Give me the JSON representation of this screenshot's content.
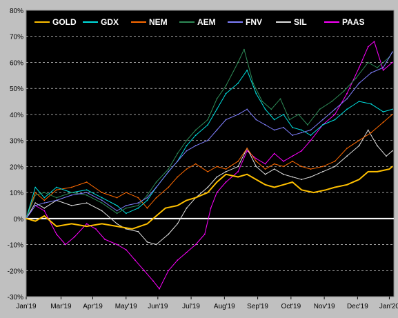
{
  "chart_data": {
    "type": "line",
    "title": "",
    "xlabel": "",
    "ylabel": "",
    "ylim": [
      -0.3,
      0.8
    ],
    "y_ticks": [
      "80%",
      "70%",
      "60%",
      "50%",
      "40%",
      "30%",
      "20%",
      "10%",
      "0%",
      "-10%",
      "-20%",
      "-30%"
    ],
    "x_ticks": [
      "Jan'19",
      "Mar'19",
      "Apr'19",
      "May'19",
      "Jun'19",
      "Jul'19",
      "Aug'19",
      "Sep'19",
      "Oct'19",
      "Nov'19",
      "Dec'19",
      "Jan'20"
    ],
    "x_positions": [
      0,
      1.15,
      2.2,
      3.3,
      4.35,
      5.45,
      6.55,
      7.65,
      8.75,
      9.85,
      10.95,
      12.0
    ],
    "background": "#000000",
    "grid": "dashed horizontal, white",
    "zero_line": true,
    "legend_position": "top",
    "series": [
      {
        "name": "GOLD",
        "color": "#ffc000",
        "points": [
          [
            0,
            0
          ],
          [
            0.3,
            -0.01
          ],
          [
            0.6,
            0.01
          ],
          [
            1.0,
            -0.03
          ],
          [
            1.5,
            -0.02
          ],
          [
            2.0,
            -0.03
          ],
          [
            2.5,
            -0.02
          ],
          [
            3.0,
            -0.03
          ],
          [
            3.5,
            -0.04
          ],
          [
            4.0,
            -0.02
          ],
          [
            4.3,
            0.01
          ],
          [
            4.6,
            0.04
          ],
          [
            5.0,
            0.05
          ],
          [
            5.3,
            0.07
          ],
          [
            5.6,
            0.08
          ],
          [
            6.0,
            0.1
          ],
          [
            6.3,
            0.14
          ],
          [
            6.6,
            0.17
          ],
          [
            7.0,
            0.16
          ],
          [
            7.3,
            0.17
          ],
          [
            7.6,
            0.15
          ],
          [
            7.9,
            0.13
          ],
          [
            8.2,
            0.12
          ],
          [
            8.5,
            0.13
          ],
          [
            8.8,
            0.14
          ],
          [
            9.1,
            0.11
          ],
          [
            9.5,
            0.1
          ],
          [
            9.9,
            0.11
          ],
          [
            10.2,
            0.12
          ],
          [
            10.6,
            0.13
          ],
          [
            11.0,
            0.15
          ],
          [
            11.3,
            0.18
          ],
          [
            11.6,
            0.18
          ],
          [
            12.0,
            0.19
          ],
          [
            12.1,
            0.2
          ]
        ]
      },
      {
        "name": "GDX",
        "color": "#00e0e0",
        "points": [
          [
            0,
            0
          ],
          [
            0.3,
            0.12
          ],
          [
            0.6,
            0.08
          ],
          [
            1.0,
            0.12
          ],
          [
            1.5,
            0.1
          ],
          [
            2.0,
            0.11
          ],
          [
            2.5,
            0.08
          ],
          [
            3.0,
            0.05
          ],
          [
            3.3,
            0.02
          ],
          [
            3.7,
            0.04
          ],
          [
            4.0,
            0.07
          ],
          [
            4.3,
            0.12
          ],
          [
            4.7,
            0.18
          ],
          [
            5.0,
            0.22
          ],
          [
            5.3,
            0.28
          ],
          [
            5.6,
            0.32
          ],
          [
            6.0,
            0.36
          ],
          [
            6.3,
            0.42
          ],
          [
            6.6,
            0.48
          ],
          [
            7.0,
            0.52
          ],
          [
            7.3,
            0.57
          ],
          [
            7.6,
            0.48
          ],
          [
            7.9,
            0.42
          ],
          [
            8.2,
            0.38
          ],
          [
            8.5,
            0.4
          ],
          [
            8.8,
            0.35
          ],
          [
            9.1,
            0.34
          ],
          [
            9.4,
            0.32
          ],
          [
            9.8,
            0.36
          ],
          [
            10.2,
            0.38
          ],
          [
            10.6,
            0.42
          ],
          [
            11.0,
            0.45
          ],
          [
            11.4,
            0.44
          ],
          [
            11.8,
            0.41
          ],
          [
            12.1,
            0.42
          ]
        ]
      },
      {
        "name": "NEM",
        "color": "#ff6a00",
        "points": [
          [
            0,
            0
          ],
          [
            0.3,
            0.1
          ],
          [
            0.6,
            0.07
          ],
          [
            1.0,
            0.11
          ],
          [
            1.5,
            0.12
          ],
          [
            2.0,
            0.14
          ],
          [
            2.5,
            0.1
          ],
          [
            3.0,
            0.08
          ],
          [
            3.3,
            0.1
          ],
          [
            3.7,
            0.08
          ],
          [
            4.0,
            0.04
          ],
          [
            4.3,
            0.08
          ],
          [
            4.7,
            0.12
          ],
          [
            5.0,
            0.16
          ],
          [
            5.3,
            0.19
          ],
          [
            5.6,
            0.21
          ],
          [
            6.0,
            0.18
          ],
          [
            6.3,
            0.2
          ],
          [
            6.6,
            0.19
          ],
          [
            7.0,
            0.22
          ],
          [
            7.3,
            0.27
          ],
          [
            7.6,
            0.22
          ],
          [
            7.9,
            0.19
          ],
          [
            8.2,
            0.21
          ],
          [
            8.5,
            0.2
          ],
          [
            8.8,
            0.22
          ],
          [
            9.1,
            0.2
          ],
          [
            9.4,
            0.19
          ],
          [
            9.8,
            0.2
          ],
          [
            10.2,
            0.22
          ],
          [
            10.6,
            0.27
          ],
          [
            11.0,
            0.3
          ],
          [
            11.4,
            0.33
          ],
          [
            11.8,
            0.37
          ],
          [
            12.1,
            0.4
          ]
        ]
      },
      {
        "name": "AEM",
        "color": "#2e8b57",
        "points": [
          [
            0,
            0
          ],
          [
            0.3,
            0.09
          ],
          [
            0.6,
            0.1
          ],
          [
            1.0,
            0.08
          ],
          [
            1.5,
            0.1
          ],
          [
            2.0,
            0.09
          ],
          [
            2.5,
            0.06
          ],
          [
            3.0,
            0.02
          ],
          [
            3.3,
            0.04
          ],
          [
            3.7,
            0.05
          ],
          [
            4.0,
            0.09
          ],
          [
            4.3,
            0.14
          ],
          [
            4.7,
            0.19
          ],
          [
            5.0,
            0.25
          ],
          [
            5.3,
            0.3
          ],
          [
            5.6,
            0.34
          ],
          [
            6.0,
            0.38
          ],
          [
            6.3,
            0.46
          ],
          [
            6.6,
            0.51
          ],
          [
            7.0,
            0.6
          ],
          [
            7.2,
            0.65
          ],
          [
            7.5,
            0.52
          ],
          [
            7.8,
            0.45
          ],
          [
            8.1,
            0.42
          ],
          [
            8.4,
            0.46
          ],
          [
            8.7,
            0.38
          ],
          [
            9.0,
            0.4
          ],
          [
            9.3,
            0.36
          ],
          [
            9.7,
            0.42
          ],
          [
            10.1,
            0.45
          ],
          [
            10.5,
            0.49
          ],
          [
            10.9,
            0.54
          ],
          [
            11.3,
            0.6
          ],
          [
            11.6,
            0.58
          ],
          [
            12.0,
            0.62
          ],
          [
            12.1,
            0.64
          ]
        ]
      },
      {
        "name": "FNV",
        "color": "#8080ff",
        "points": [
          [
            0,
            0
          ],
          [
            0.3,
            0.05
          ],
          [
            0.6,
            0.06
          ],
          [
            1.0,
            0.07
          ],
          [
            1.5,
            0.09
          ],
          [
            2.0,
            0.1
          ],
          [
            2.5,
            0.07
          ],
          [
            3.0,
            0.03
          ],
          [
            3.3,
            0.05
          ],
          [
            3.7,
            0.06
          ],
          [
            4.0,
            0.08
          ],
          [
            4.3,
            0.12
          ],
          [
            4.7,
            0.18
          ],
          [
            5.0,
            0.22
          ],
          [
            5.3,
            0.26
          ],
          [
            5.6,
            0.28
          ],
          [
            6.0,
            0.3
          ],
          [
            6.3,
            0.34
          ],
          [
            6.6,
            0.38
          ],
          [
            7.0,
            0.4
          ],
          [
            7.3,
            0.42
          ],
          [
            7.6,
            0.38
          ],
          [
            7.9,
            0.36
          ],
          [
            8.2,
            0.34
          ],
          [
            8.5,
            0.35
          ],
          [
            8.8,
            0.32
          ],
          [
            9.1,
            0.33
          ],
          [
            9.4,
            0.34
          ],
          [
            9.8,
            0.38
          ],
          [
            10.2,
            0.42
          ],
          [
            10.6,
            0.46
          ],
          [
            11.0,
            0.52
          ],
          [
            11.4,
            0.56
          ],
          [
            11.8,
            0.58
          ],
          [
            12.1,
            0.64
          ]
        ]
      },
      {
        "name": "SIL",
        "color": "#e0e0e0",
        "points": [
          [
            0,
            0
          ],
          [
            0.3,
            0.06
          ],
          [
            0.6,
            0.04
          ],
          [
            1.0,
            0.07
          ],
          [
            1.5,
            0.05
          ],
          [
            2.0,
            0.06
          ],
          [
            2.5,
            0.03
          ],
          [
            3.0,
            -0.02
          ],
          [
            3.3,
            -0.04
          ],
          [
            3.7,
            -0.05
          ],
          [
            4.0,
            -0.09
          ],
          [
            4.3,
            -0.1
          ],
          [
            4.7,
            -0.06
          ],
          [
            5.0,
            -0.02
          ],
          [
            5.3,
            0.04
          ],
          [
            5.6,
            0.08
          ],
          [
            6.0,
            0.12
          ],
          [
            6.3,
            0.16
          ],
          [
            6.6,
            0.18
          ],
          [
            7.0,
            0.2
          ],
          [
            7.3,
            0.27
          ],
          [
            7.6,
            0.2
          ],
          [
            7.9,
            0.17
          ],
          [
            8.2,
            0.19
          ],
          [
            8.5,
            0.17
          ],
          [
            8.8,
            0.16
          ],
          [
            9.1,
            0.15
          ],
          [
            9.4,
            0.16
          ],
          [
            9.8,
            0.18
          ],
          [
            10.2,
            0.2
          ],
          [
            10.6,
            0.24
          ],
          [
            11.0,
            0.28
          ],
          [
            11.3,
            0.34
          ],
          [
            11.6,
            0.28
          ],
          [
            11.9,
            0.24
          ],
          [
            12.1,
            0.26
          ]
        ]
      },
      {
        "name": "PAAS",
        "color": "#ff00ff",
        "points": [
          [
            0,
            0
          ],
          [
            0.3,
            0.05
          ],
          [
            0.6,
            0.03
          ],
          [
            1.0,
            -0.06
          ],
          [
            1.3,
            -0.1
          ],
          [
            1.6,
            -0.07
          ],
          [
            2.0,
            -0.02
          ],
          [
            2.3,
            -0.04
          ],
          [
            2.6,
            -0.08
          ],
          [
            3.0,
            -0.1
          ],
          [
            3.3,
            -0.12
          ],
          [
            3.6,
            -0.16
          ],
          [
            3.9,
            -0.2
          ],
          [
            4.2,
            -0.24
          ],
          [
            4.4,
            -0.27
          ],
          [
            4.7,
            -0.2
          ],
          [
            5.0,
            -0.16
          ],
          [
            5.3,
            -0.13
          ],
          [
            5.6,
            -0.1
          ],
          [
            5.9,
            -0.06
          ],
          [
            6.1,
            0.04
          ],
          [
            6.3,
            0.1
          ],
          [
            6.6,
            0.14
          ],
          [
            7.0,
            0.18
          ],
          [
            7.3,
            0.26
          ],
          [
            7.6,
            0.23
          ],
          [
            7.9,
            0.21
          ],
          [
            8.2,
            0.25
          ],
          [
            8.5,
            0.22
          ],
          [
            8.8,
            0.24
          ],
          [
            9.1,
            0.26
          ],
          [
            9.4,
            0.3
          ],
          [
            9.8,
            0.36
          ],
          [
            10.2,
            0.4
          ],
          [
            10.6,
            0.48
          ],
          [
            11.0,
            0.58
          ],
          [
            11.3,
            0.66
          ],
          [
            11.5,
            0.68
          ],
          [
            11.8,
            0.57
          ],
          [
            12.1,
            0.6
          ]
        ]
      }
    ]
  }
}
